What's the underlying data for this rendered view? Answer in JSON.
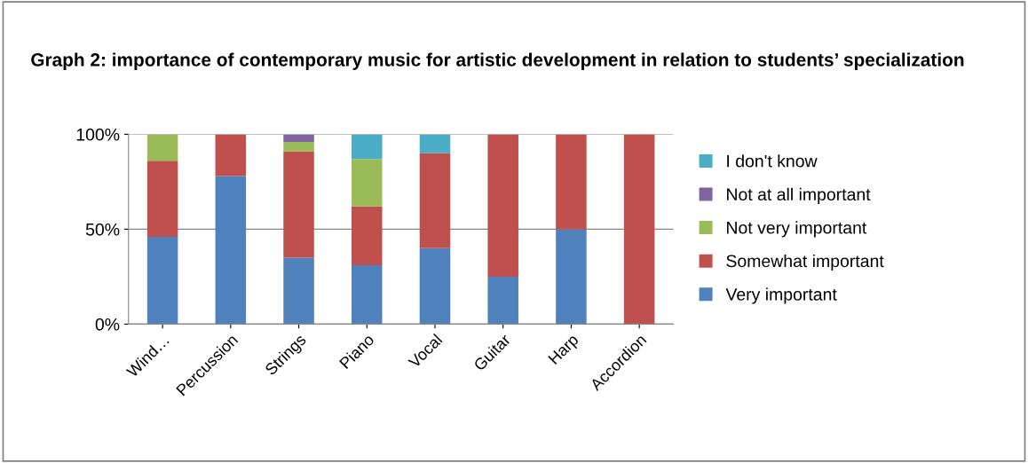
{
  "chart_data": {
    "type": "bar",
    "title": "Graph 2: importance of contemporary music for artistic development in relation to students’ specialization",
    "categories": [
      "Wind…",
      "Percussion",
      "Strings",
      "Piano",
      "Vocal",
      "Guitar",
      "Harp",
      "Accordion"
    ],
    "stacked": true,
    "series": [
      {
        "name": "Very important",
        "color": "#4f81bd",
        "values": [
          46,
          78,
          35,
          31,
          40,
          25,
          50,
          0
        ]
      },
      {
        "name": "Somewhat important",
        "color": "#c0504d",
        "values": [
          40,
          22,
          56,
          31,
          50,
          75,
          50,
          100
        ]
      },
      {
        "name": "Not very important",
        "color": "#9bbb59",
        "values": [
          14,
          0,
          5,
          25,
          0,
          0,
          0,
          0
        ]
      },
      {
        "name": "Not at all important",
        "color": "#8064a2",
        "values": [
          0,
          0,
          4,
          0,
          0,
          0,
          0,
          0
        ]
      },
      {
        "name": "I don't know",
        "color": "#4bacc6",
        "values": [
          0,
          0,
          0,
          13,
          10,
          0,
          0,
          0
        ]
      }
    ],
    "ylim": [
      0,
      100
    ],
    "yticks": [
      {
        "value": 0,
        "label": "0%"
      },
      {
        "value": 50,
        "label": "50%"
      },
      {
        "value": 100,
        "label": "100%"
      }
    ],
    "grid": "y",
    "legend": "right"
  }
}
